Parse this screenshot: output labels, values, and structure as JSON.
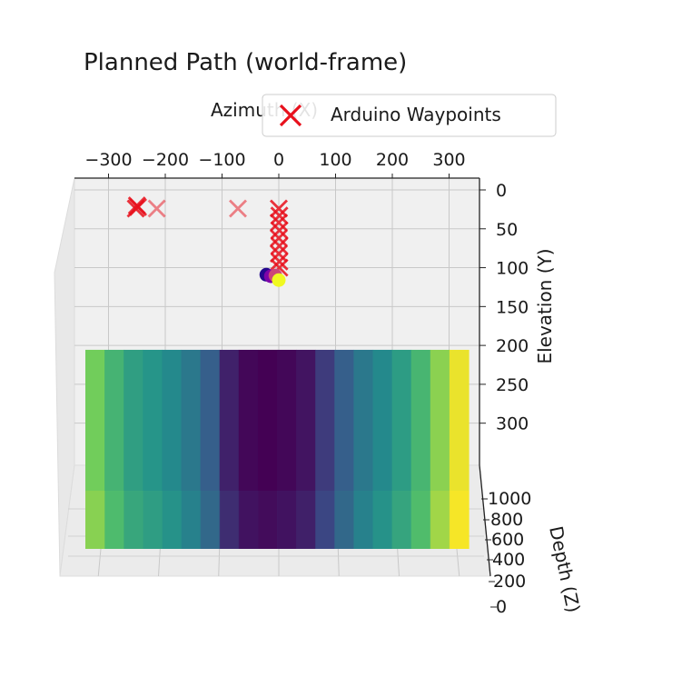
{
  "chart_data": {
    "type": "scatter",
    "title": "Planned Path (world-frame)",
    "xlabel": "Azimuth (X)",
    "ylabel": "Elevation (Y)",
    "zlabel": "Depth (Z)",
    "projection": "3d",
    "grid": true,
    "legend": {
      "location": "top-center",
      "entries": [
        "Arduino Waypoints"
      ]
    },
    "x_ticks": [
      "−300",
      "−200",
      "−100",
      "0",
      "100",
      "200",
      "300"
    ],
    "y_ticks": [
      "0",
      "50",
      "100",
      "150",
      "200",
      "250",
      "300"
    ],
    "z_ticks": [
      "1000",
      "800",
      "600",
      "400",
      "200",
      "0"
    ],
    "xlim": [
      -350,
      350
    ],
    "ylim": [
      0,
      320
    ],
    "zlim": [
      0,
      1050
    ],
    "series": [
      {
        "name": "Arduino Waypoints",
        "marker": "x",
        "color": "#e8101c",
        "points": [
          {
            "x": -250,
            "y": 20
          },
          {
            "x": -248,
            "y": 22
          },
          {
            "x": -252,
            "y": 24
          },
          {
            "x": -215,
            "y": 24
          },
          {
            "x": -72,
            "y": 24
          },
          {
            "x": 0,
            "y": 24
          },
          {
            "x": 1,
            "y": 33
          },
          {
            "x": 0,
            "y": 42
          },
          {
            "x": 1,
            "y": 52
          },
          {
            "x": 0,
            "y": 62
          },
          {
            "x": 1,
            "y": 72
          },
          {
            "x": 0,
            "y": 82
          },
          {
            "x": 1,
            "y": 92
          },
          {
            "x": 1,
            "y": 100
          }
        ]
      },
      {
        "marker": "o",
        "colormap": "plasma",
        "points": [
          {
            "x": -22,
            "y": 109,
            "c": 0.05
          },
          {
            "x": -14,
            "y": 111,
            "c": 0.25
          },
          {
            "x": -6,
            "y": 110,
            "c": 0.5
          },
          {
            "x": 0,
            "y": 116,
            "c": 1.0
          }
        ]
      },
      {
        "type": "surface",
        "colormap": "viridis",
        "y_level": 215,
        "columns": [
          0.78,
          0.65,
          0.56,
          0.52,
          0.47,
          0.4,
          0.3,
          0.1,
          0.02,
          0.0,
          0.02,
          0.06,
          0.18,
          0.3,
          0.4,
          0.47,
          0.55,
          0.66,
          0.82,
          0.97
        ]
      }
    ]
  }
}
